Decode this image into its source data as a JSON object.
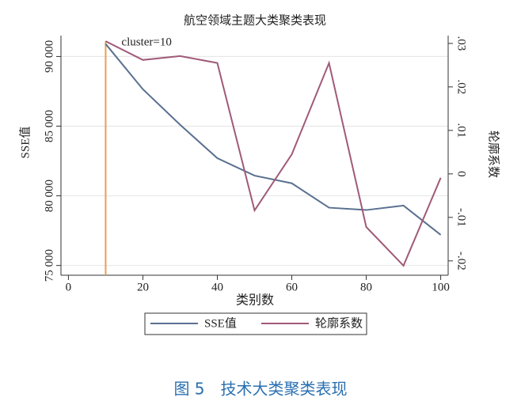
{
  "chart_data": {
    "type": "line",
    "title": "航空领域主题大类聚类表现",
    "x_label": "类别数",
    "y_label": "SSE值",
    "y2_label": "轮廓系数",
    "x": [
      10,
      20,
      30,
      40,
      50,
      60,
      70,
      80,
      90,
      100
    ],
    "series": [
      {
        "name": "SSE值",
        "color": "#5a7090",
        "values": [
          90900,
          87650,
          85100,
          82700,
          81450,
          80900,
          79150,
          78980,
          79300,
          77200
        ]
      },
      {
        "name": "轮廓系数",
        "color": "#a05a78",
        "axis": "y2",
        "values": [
          0.0305,
          0.0262,
          0.0271,
          0.0255,
          -0.0084,
          0.0045,
          0.0255,
          -0.0122,
          -0.0211,
          -0.0009
        ]
      }
    ],
    "xlim": [
      -2,
      102
    ],
    "xticks": [
      0,
      20,
      40,
      60,
      80,
      100
    ],
    "ylim": [
      74300,
      91500
    ],
    "yticks": [
      {
        "value": 75000,
        "label": "75 000"
      },
      {
        "value": 80000,
        "label": "80 000"
      },
      {
        "value": 85000,
        "label": "85 000"
      },
      {
        "value": 90000,
        "label": "90 000"
      }
    ],
    "y2lim": [
      -0.0233,
      0.0318
    ],
    "y2ticks": [
      {
        "value": -0.02,
        "label": "-.02"
      },
      {
        "value": -0.01,
        "label": "-.01"
      },
      0,
      {
        "value": 0.01,
        "label": ".01"
      },
      {
        "value": 0.02,
        "label": ".02"
      },
      {
        "value": 0.03,
        "label": ".03"
      }
    ],
    "grid": true,
    "vline": {
      "x": 10,
      "color": "#e8a050",
      "label": "cluster=10"
    }
  },
  "caption": "图 5　技术大类聚类表现"
}
